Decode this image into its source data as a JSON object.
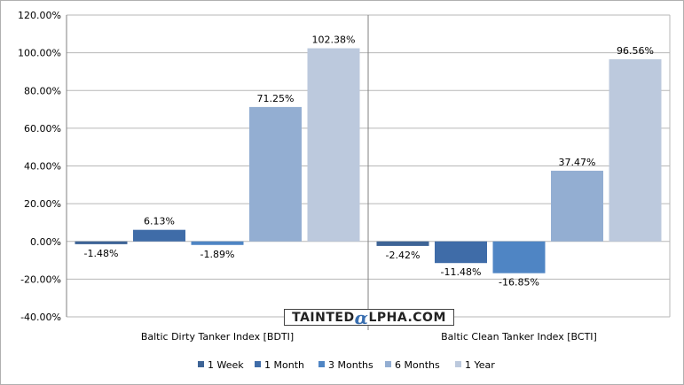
{
  "chart_data": {
    "type": "bar",
    "categories": [
      "Baltic Dirty Tanker Index [BDTI]",
      "Baltic Clean Tanker Index [BCTI]"
    ],
    "series": [
      {
        "name": "1 Week",
        "color": "#3e6496",
        "values": [
          -1.48,
          -2.42
        ],
        "labels": [
          "-1.48%",
          "-2.42%"
        ]
      },
      {
        "name": "1 Month",
        "color": "#3f6ca8",
        "values": [
          6.13,
          -11.48
        ],
        "labels": [
          "6.13%",
          "-11.48%"
        ]
      },
      {
        "name": "3 Months",
        "color": "#4f85c4",
        "values": [
          -1.89,
          -16.85
        ],
        "labels": [
          "-1.89%",
          "-16.85%"
        ]
      },
      {
        "name": "6 Months",
        "color": "#93aed2",
        "values": [
          71.25,
          37.47
        ],
        "labels": [
          "71.25%",
          "37.47%"
        ]
      },
      {
        "name": "1 Year",
        "color": "#bcc9dd",
        "values": [
          102.38,
          96.56
        ],
        "labels": [
          "102.38%",
          "96.56%"
        ]
      }
    ],
    "y_ticks": [
      "-40.00%",
      "-20.00%",
      "0.00%",
      "20.00%",
      "40.00%",
      "60.00%",
      "80.00%",
      "100.00%",
      "120.00%"
    ],
    "ylim": [
      -40,
      120
    ],
    "y_step": 20,
    "grid": true,
    "legend_position": "bottom"
  },
  "watermark": {
    "prefix": "TAINTED",
    "alpha": "α",
    "suffix": "LPHA.COM"
  }
}
